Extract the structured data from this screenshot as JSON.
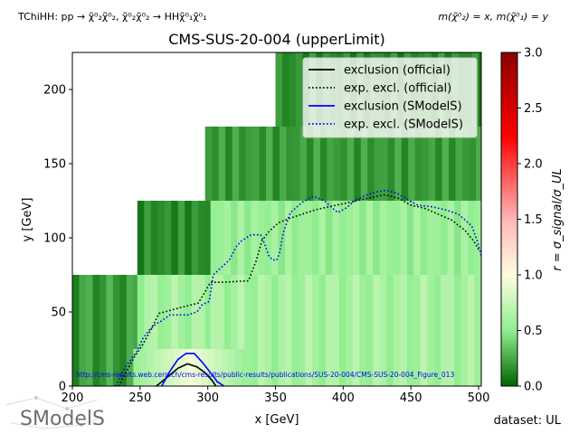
{
  "header": {
    "topology": "TChiHH: pp → χ̃⁰₂χ̃⁰₂, χ̃⁰₂χ̃⁰₂ → HHχ̃⁰₁χ̃⁰₁",
    "mass_assignment": "m(χ̃⁰₂) = x, m(χ̃⁰₁) = y",
    "dataset": "dataset: UL",
    "url": "http://cms-results.web.cern.ch/cms-results/public-results/publications/SUS-20-004/CMS-SUS-20-004_Figure_013",
    "logo_text": "SModelS"
  },
  "chart_data": {
    "type": "heatmap",
    "title": "CMS-SUS-20-004 (upperLimit)",
    "xlabel": "x [GeV]",
    "ylabel": "y [GeV]",
    "xlim": [
      200,
      502
    ],
    "ylim": [
      0,
      225
    ],
    "xticks": [
      200,
      250,
      300,
      350,
      400,
      450,
      500
    ],
    "yticks": [
      0,
      50,
      100,
      150,
      200
    ],
    "colorbar": {
      "label": "r = σ_signal/σ_UL",
      "range": [
        0.0,
        3.0
      ],
      "ticks": [
        "0.0",
        "0.5",
        "1.0",
        "1.5",
        "2.0",
        "2.5",
        "3.0"
      ],
      "colormap": [
        "#006400",
        "#90ee90",
        "#fffde0",
        "#ffb6b6",
        "#ff0000",
        "#8b0000"
      ]
    },
    "heatmap_regions": [
      {
        "x": [
          200,
          248
        ],
        "y": [
          0,
          75
        ],
        "r_approx": 0.2
      },
      {
        "x": [
          248,
          302
        ],
        "y": [
          0,
          75
        ],
        "r_approx": 0.6
      },
      {
        "x": [
          302,
          502
        ],
        "y": [
          0,
          75
        ],
        "r_approx": 0.6
      },
      {
        "x": [
          248,
          302
        ],
        "y": [
          75,
          125
        ],
        "r_approx": 0.15
      },
      {
        "x": [
          302,
          502
        ],
        "y": [
          75,
          125
        ],
        "r_approx": 0.55
      },
      {
        "x": [
          298,
          502
        ],
        "y": [
          125,
          175
        ],
        "r_approx": 0.2
      },
      {
        "x": [
          350,
          502
        ],
        "y": [
          175,
          225
        ],
        "r_approx": 0.15
      }
    ],
    "legend": {
      "placement": "upper right",
      "entries": [
        {
          "label": "exclusion (official)",
          "color": "#000000",
          "style": "solid"
        },
        {
          "label": "exp. excl. (official)",
          "color": "#000000",
          "style": "dotted"
        },
        {
          "label": "exclusion (SModelS)",
          "color": "#0000ff",
          "style": "solid"
        },
        {
          "label": "exp. excl. (SModelS)",
          "color": "#0000ff",
          "style": "dotted"
        }
      ]
    },
    "series": [
      {
        "name": "exclusion (official)",
        "points": [
          [
            262,
            0
          ],
          [
            270,
            6
          ],
          [
            278,
            12
          ],
          [
            285,
            15
          ],
          [
            292,
            13
          ],
          [
            298,
            9
          ],
          [
            303,
            4
          ],
          [
            306,
            0
          ]
        ]
      },
      {
        "name": "exp. excl. (official)",
        "points": [
          [
            234,
            0
          ],
          [
            240,
            10
          ],
          [
            246,
            20
          ],
          [
            252,
            28
          ],
          [
            258,
            38
          ],
          [
            264,
            49
          ],
          [
            272,
            51
          ],
          [
            280,
            53
          ],
          [
            293,
            56
          ],
          [
            297,
            62
          ],
          [
            302,
            70
          ],
          [
            310,
            70
          ],
          [
            330,
            71
          ],
          [
            336,
            85
          ],
          [
            340,
            98
          ],
          [
            345,
            104
          ],
          [
            352,
            110
          ],
          [
            360,
            113
          ],
          [
            380,
            119
          ],
          [
            400,
            123
          ],
          [
            420,
            127
          ],
          [
            430,
            129
          ],
          [
            440,
            127
          ],
          [
            450,
            122
          ],
          [
            460,
            120
          ],
          [
            470,
            116
          ],
          [
            480,
            112
          ],
          [
            490,
            105
          ],
          [
            497,
            97
          ],
          [
            500,
            92
          ]
        ]
      },
      {
        "name": "exclusion (SModelS)",
        "points": [
          [
            266,
            0
          ],
          [
            272,
            10
          ],
          [
            278,
            18
          ],
          [
            284,
            22
          ],
          [
            290,
            22
          ],
          [
            296,
            16
          ],
          [
            302,
            9
          ],
          [
            307,
            3
          ],
          [
            312,
            0
          ]
        ]
      },
      {
        "name": "exp. excl. (SModelS)",
        "points": [
          [
            232,
            0
          ],
          [
            236,
            8
          ],
          [
            240,
            14
          ],
          [
            245,
            20
          ],
          [
            248,
            24
          ],
          [
            252,
            32
          ],
          [
            257,
            38
          ],
          [
            262,
            42
          ],
          [
            266,
            44
          ],
          [
            272,
            48
          ],
          [
            280,
            48
          ],
          [
            285,
            48
          ],
          [
            292,
            50
          ],
          [
            296,
            55
          ],
          [
            301,
            57
          ],
          [
            304,
            75
          ],
          [
            310,
            80
          ],
          [
            316,
            85
          ],
          [
            321,
            94
          ],
          [
            325,
            98
          ],
          [
            332,
            102
          ],
          [
            339,
            102
          ],
          [
            342,
            96
          ],
          [
            345,
            88
          ],
          [
            348,
            85
          ],
          [
            351,
            85
          ],
          [
            353,
            90
          ],
          [
            356,
            104
          ],
          [
            361,
            117
          ],
          [
            370,
            124
          ],
          [
            378,
            128
          ],
          [
            386,
            125
          ],
          [
            392,
            120
          ],
          [
            396,
            117
          ],
          [
            402,
            120
          ],
          [
            410,
            126
          ],
          [
            418,
            129
          ],
          [
            425,
            131
          ],
          [
            432,
            132
          ],
          [
            440,
            130
          ],
          [
            447,
            126
          ],
          [
            455,
            122
          ],
          [
            465,
            121
          ],
          [
            475,
            119
          ],
          [
            485,
            116
          ],
          [
            490,
            112
          ],
          [
            495,
            108
          ],
          [
            499,
            98
          ],
          [
            502,
            88
          ]
        ]
      }
    ]
  }
}
